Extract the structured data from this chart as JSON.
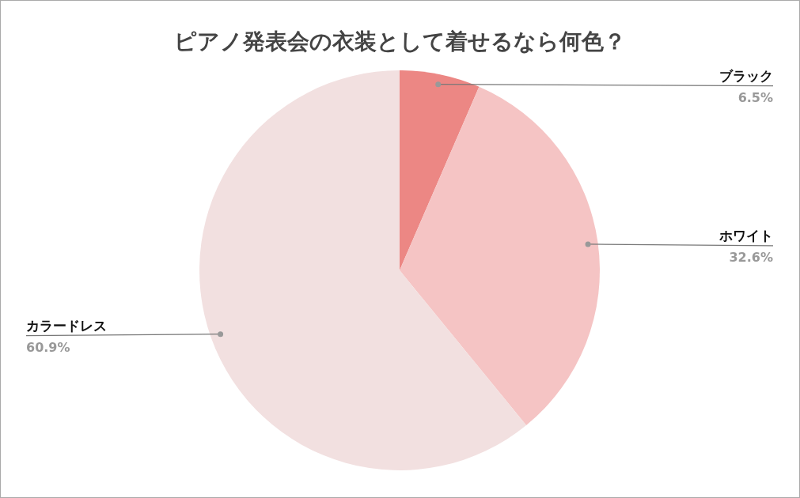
{
  "chart_data": {
    "type": "pie",
    "title": "ピアノ発表会の衣装として着せるなら何色？",
    "categories": [
      "ブラック",
      "ホワイト",
      "カラードレス"
    ],
    "values": [
      6.5,
      32.6,
      60.9
    ],
    "colors": [
      "#ec8784",
      "#f5c4c4",
      "#f2e0e0"
    ],
    "value_labels": [
      "6.5%",
      "32.6%",
      "60.9%"
    ]
  }
}
